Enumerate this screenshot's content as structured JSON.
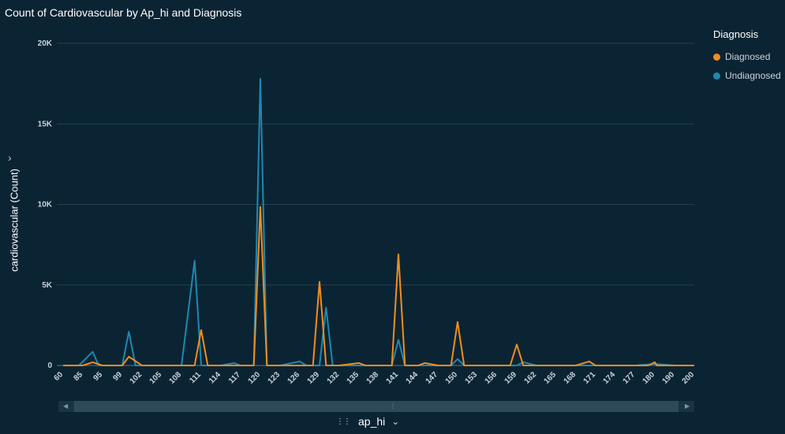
{
  "title": "Count of Cardiovascular by Ap_hi and Diagnosis",
  "chart_data": {
    "type": "line",
    "title": "Count of Cardiovascular by Ap_hi and Diagnosis",
    "xlabel": "ap_hi",
    "ylabel": "cardiovascular (Count)",
    "ylim": [
      0,
      20000
    ],
    "yticks": [
      0,
      5000,
      10000,
      15000,
      20000
    ],
    "ytick_labels": [
      "0",
      "5K",
      "10K",
      "15K",
      "20K"
    ],
    "x_tick_labels": [
      "60",
      "85",
      "95",
      "99",
      "102",
      "105",
      "108",
      "111",
      "114",
      "117",
      "120",
      "123",
      "126",
      "129",
      "132",
      "135",
      "138",
      "141",
      "144",
      "147",
      "150",
      "153",
      "156",
      "159",
      "162",
      "165",
      "168",
      "171",
      "174",
      "177",
      "180",
      "190",
      "200"
    ],
    "grid": true,
    "legend_title": "Diagnosis",
    "legend_position": "right",
    "series": [
      {
        "name": "Diagnosed",
        "color": "#f28e1c",
        "points": [
          [
            60,
            0
          ],
          [
            85,
            0
          ],
          [
            90,
            200
          ],
          [
            95,
            0
          ],
          [
            99,
            0
          ],
          [
            100,
            550
          ],
          [
            102,
            0
          ],
          [
            105,
            0
          ],
          [
            108,
            0
          ],
          [
            110,
            0
          ],
          [
            111,
            2200
          ],
          [
            112,
            0
          ],
          [
            114,
            0
          ],
          [
            117,
            0
          ],
          [
            119,
            0
          ],
          [
            120,
            9850
          ],
          [
            121,
            0
          ],
          [
            123,
            0
          ],
          [
            126,
            0
          ],
          [
            128,
            0
          ],
          [
            129,
            5200
          ],
          [
            130,
            0
          ],
          [
            132,
            0
          ],
          [
            135,
            150
          ],
          [
            136,
            0
          ],
          [
            138,
            0
          ],
          [
            140,
            0
          ],
          [
            141,
            6900
          ],
          [
            142,
            0
          ],
          [
            144,
            0
          ],
          [
            145,
            150
          ],
          [
            147,
            0
          ],
          [
            149,
            0
          ],
          [
            150,
            2700
          ],
          [
            151,
            0
          ],
          [
            153,
            0
          ],
          [
            156,
            0
          ],
          [
            158,
            0
          ],
          [
            159,
            1300
          ],
          [
            160,
            0
          ],
          [
            162,
            0
          ],
          [
            165,
            0
          ],
          [
            168,
            0
          ],
          [
            170,
            250
          ],
          [
            171,
            0
          ],
          [
            174,
            0
          ],
          [
            177,
            0
          ],
          [
            179,
            0
          ],
          [
            180,
            200
          ],
          [
            181,
            0
          ],
          [
            190,
            0
          ],
          [
            200,
            0
          ]
        ]
      },
      {
        "name": "Undiagnosed",
        "color": "#1f88b0",
        "points": [
          [
            60,
            0
          ],
          [
            80,
            0
          ],
          [
            90,
            850
          ],
          [
            93,
            0
          ],
          [
            95,
            0
          ],
          [
            99,
            0
          ],
          [
            100,
            2100
          ],
          [
            101,
            0
          ],
          [
            102,
            0
          ],
          [
            105,
            0
          ],
          [
            108,
            0
          ],
          [
            110,
            6500
          ],
          [
            111,
            0
          ],
          [
            114,
            0
          ],
          [
            116,
            150
          ],
          [
            117,
            0
          ],
          [
            119,
            0
          ],
          [
            120,
            17800
          ],
          [
            121,
            0
          ],
          [
            123,
            0
          ],
          [
            126,
            250
          ],
          [
            127,
            0
          ],
          [
            129,
            0
          ],
          [
            130,
            3600
          ],
          [
            131,
            0
          ],
          [
            132,
            0
          ],
          [
            135,
            0
          ],
          [
            138,
            0
          ],
          [
            140,
            0
          ],
          [
            141,
            1600
          ],
          [
            142,
            0
          ],
          [
            144,
            0
          ],
          [
            147,
            0
          ],
          [
            149,
            0
          ],
          [
            150,
            400
          ],
          [
            151,
            0
          ],
          [
            153,
            0
          ],
          [
            156,
            0
          ],
          [
            159,
            0
          ],
          [
            160,
            200
          ],
          [
            162,
            0
          ],
          [
            165,
            0
          ],
          [
            168,
            0
          ],
          [
            171,
            0
          ],
          [
            174,
            0
          ],
          [
            177,
            0
          ],
          [
            180,
            100
          ],
          [
            190,
            0
          ],
          [
            200,
            0
          ]
        ]
      }
    ]
  },
  "ui": {
    "sort_icon": "sort-icon",
    "chevron": "chevron-down-icon"
  }
}
